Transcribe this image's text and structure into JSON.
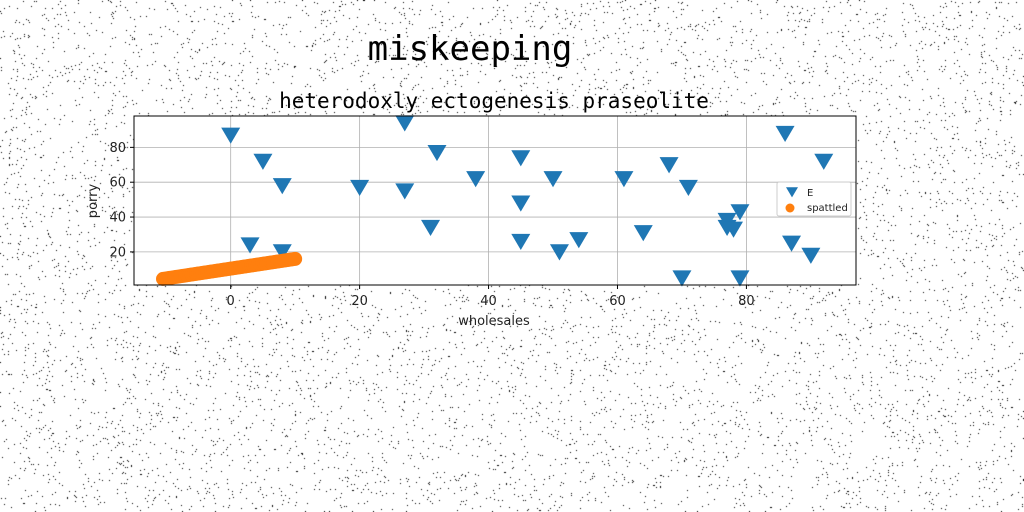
{
  "chart_data": {
    "type": "scatter",
    "suptitle": "miskeeping",
    "title": "heterodoxly ectogenesis praseolite",
    "xlabel": "wholesales",
    "ylabel": "porry",
    "xlim": [
      -15,
      97
    ],
    "ylim": [
      1,
      98
    ],
    "xticks": [
      0,
      20,
      40,
      60,
      80
    ],
    "yticks": [
      20,
      40,
      60,
      80
    ],
    "grid": true,
    "legend_position": "center-right",
    "series": [
      {
        "name": "E",
        "marker": "triangle-down",
        "color": "#1f77b4",
        "points": [
          [
            0,
            87
          ],
          [
            3,
            24
          ],
          [
            5,
            72
          ],
          [
            8,
            20
          ],
          [
            8,
            58
          ],
          [
            20,
            57
          ],
          [
            27,
            94
          ],
          [
            27,
            55
          ],
          [
            31,
            34
          ],
          [
            32,
            77
          ],
          [
            38,
            62
          ],
          [
            45,
            48
          ],
          [
            45,
            26
          ],
          [
            45,
            74
          ],
          [
            50,
            62
          ],
          [
            51,
            20
          ],
          [
            54,
            27
          ],
          [
            61,
            62
          ],
          [
            64,
            31
          ],
          [
            68,
            70
          ],
          [
            70,
            5
          ],
          [
            71,
            57
          ],
          [
            77,
            38
          ],
          [
            77,
            34
          ],
          [
            78,
            33
          ],
          [
            79,
            5
          ],
          [
            79,
            43
          ],
          [
            86,
            88
          ],
          [
            87,
            25
          ],
          [
            90,
            18
          ],
          [
            92,
            72
          ]
        ]
      },
      {
        "name": "spattled",
        "marker": "circle",
        "color": "#ff7f0e",
        "line": {
          "x_start": -10.5,
          "x_end": 10,
          "y_start": 4.5,
          "y_end": 16
        }
      }
    ]
  }
}
